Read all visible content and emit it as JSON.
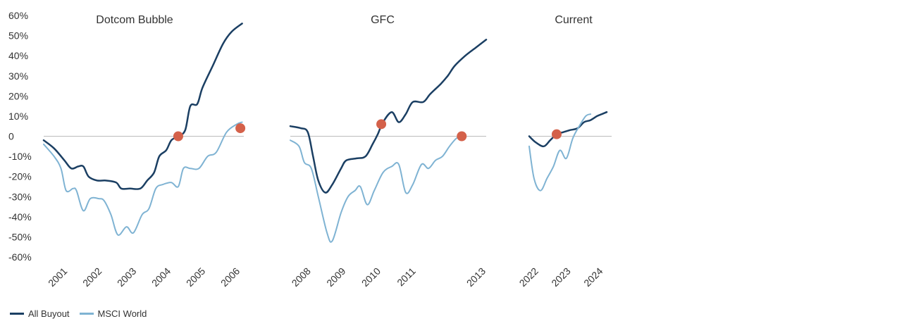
{
  "chart_data": {
    "type": "line",
    "y_tick_labels": [
      "60%",
      "50%",
      "40%",
      "30%",
      "20%",
      "10%",
      "0",
      "-10%",
      "-20%",
      "-30%",
      "-40%",
      "-50%",
      "-60%"
    ],
    "ylim": [
      -60,
      60
    ],
    "colors": {
      "buyout": "#1b3f63",
      "msci": "#7fb3d3",
      "marker": "#d4614a",
      "zero_line": "#bbbbbb"
    },
    "legend": [
      {
        "key": "buyout",
        "label": "All Buyout"
      },
      {
        "key": "msci",
        "label": "MSCI World"
      }
    ],
    "panels": [
      {
        "title": "Dotcom Bubble",
        "xlim": [
          2000.3,
          2006.1
        ],
        "x_ticks": [
          "2001",
          "2002",
          "2003",
          "2004",
          "2005",
          "2006"
        ],
        "series": [
          {
            "key": "buyout",
            "points": [
              [
                2000.3,
                -2
              ],
              [
                2000.6,
                -6
              ],
              [
                2000.9,
                -12
              ],
              [
                2001.1,
                -16
              ],
              [
                2001.3,
                -15
              ],
              [
                2001.45,
                -15
              ],
              [
                2001.6,
                -20
              ],
              [
                2001.85,
                -22
              ],
              [
                2002.1,
                -22
              ],
              [
                2002.4,
                -23
              ],
              [
                2002.55,
                -26
              ],
              [
                2002.8,
                -26
              ],
              [
                2003.1,
                -26
              ],
              [
                2003.3,
                -22
              ],
              [
                2003.5,
                -18
              ],
              [
                2003.65,
                -10
              ],
              [
                2003.85,
                -7
              ],
              [
                2004.0,
                -2
              ],
              [
                2004.2,
                0
              ],
              [
                2004.4,
                3
              ],
              [
                2004.55,
                15
              ],
              [
                2004.75,
                16
              ],
              [
                2004.9,
                24
              ],
              [
                2005.2,
                35
              ],
              [
                2005.5,
                46
              ],
              [
                2005.75,
                52
              ],
              [
                2006.05,
                56
              ]
            ]
          },
          {
            "key": "msci",
            "points": [
              [
                2000.3,
                -4
              ],
              [
                2000.6,
                -10
              ],
              [
                2000.8,
                -16
              ],
              [
                2000.95,
                -27
              ],
              [
                2001.15,
                -26
              ],
              [
                2001.25,
                -27
              ],
              [
                2001.45,
                -37
              ],
              [
                2001.65,
                -31
              ],
              [
                2001.9,
                -31
              ],
              [
                2002.05,
                -32
              ],
              [
                2002.25,
                -39
              ],
              [
                2002.45,
                -49
              ],
              [
                2002.7,
                -45
              ],
              [
                2002.9,
                -48
              ],
              [
                2003.15,
                -39
              ],
              [
                2003.35,
                -36
              ],
              [
                2003.55,
                -26
              ],
              [
                2003.75,
                -24
              ],
              [
                2004.0,
                -23
              ],
              [
                2004.2,
                -25
              ],
              [
                2004.35,
                -16
              ],
              [
                2004.55,
                -16
              ],
              [
                2004.8,
                -16
              ],
              [
                2005.05,
                -10
              ],
              [
                2005.3,
                -8
              ],
              [
                2005.6,
                2
              ],
              [
                2005.9,
                6
              ],
              [
                2006.05,
                7
              ]
            ]
          }
        ],
        "markers": [
          [
            2004.2,
            0
          ],
          [
            2006.0,
            4
          ]
        ]
      },
      {
        "title": "GFC",
        "xlim": [
          2007.4,
          2013.0
        ],
        "x_ticks": [
          "2008",
          "2009",
          "2010",
          "2011",
          "2013"
        ],
        "series": [
          {
            "key": "buyout",
            "points": [
              [
                2007.4,
                5
              ],
              [
                2007.7,
                4
              ],
              [
                2007.9,
                2
              ],
              [
                2008.05,
                -10
              ],
              [
                2008.2,
                -22
              ],
              [
                2008.4,
                -28
              ],
              [
                2008.6,
                -24
              ],
              [
                2008.85,
                -16
              ],
              [
                2009.0,
                -12
              ],
              [
                2009.3,
                -11
              ],
              [
                2009.55,
                -10
              ],
              [
                2009.75,
                -4
              ],
              [
                2009.9,
                1
              ],
              [
                2010.05,
                7
              ],
              [
                2010.3,
                12
              ],
              [
                2010.5,
                7
              ],
              [
                2010.7,
                11
              ],
              [
                2010.9,
                17
              ],
              [
                2011.2,
                17
              ],
              [
                2011.4,
                21
              ],
              [
                2011.7,
                26
              ],
              [
                2011.9,
                30
              ],
              [
                2012.1,
                35
              ],
              [
                2012.4,
                40
              ],
              [
                2012.7,
                44
              ],
              [
                2013.0,
                48
              ]
            ]
          },
          {
            "key": "msci",
            "points": [
              [
                2007.4,
                -2
              ],
              [
                2007.65,
                -5
              ],
              [
                2007.8,
                -13
              ],
              [
                2008.0,
                -16
              ],
              [
                2008.2,
                -30
              ],
              [
                2008.45,
                -48
              ],
              [
                2008.6,
                -52
              ],
              [
                2008.85,
                -38
              ],
              [
                2009.05,
                -30
              ],
              [
                2009.25,
                -27
              ],
              [
                2009.4,
                -25
              ],
              [
                2009.6,
                -34
              ],
              [
                2009.8,
                -27
              ],
              [
                2010.05,
                -18
              ],
              [
                2010.3,
                -15
              ],
              [
                2010.5,
                -14
              ],
              [
                2010.7,
                -28
              ],
              [
                2010.9,
                -24
              ],
              [
                2011.15,
                -14
              ],
              [
                2011.35,
                -16
              ],
              [
                2011.55,
                -12
              ],
              [
                2011.75,
                -10
              ],
              [
                2011.95,
                -5
              ],
              [
                2012.15,
                -1
              ],
              [
                2012.3,
                0
              ]
            ]
          }
        ],
        "markers": [
          [
            2010.0,
            6
          ],
          [
            2012.3,
            0
          ]
        ]
      },
      {
        "title": "Current",
        "xlim": [
          2021.7,
          2024.1
        ],
        "x_ticks": [
          "2022",
          "2023",
          "2024"
        ],
        "series": [
          {
            "key": "buyout",
            "points": [
              [
                2021.7,
                0
              ],
              [
                2021.9,
                -3
              ],
              [
                2022.15,
                -5
              ],
              [
                2022.35,
                -2
              ],
              [
                2022.55,
                1
              ],
              [
                2022.75,
                2
              ],
              [
                2022.95,
                3
              ],
              [
                2023.2,
                4
              ],
              [
                2023.4,
                7
              ],
              [
                2023.6,
                8
              ],
              [
                2023.8,
                10
              ],
              [
                2023.95,
                11
              ],
              [
                2024.1,
                12
              ]
            ]
          },
          {
            "key": "msci",
            "points": [
              [
                2021.7,
                -5
              ],
              [
                2021.85,
                -21
              ],
              [
                2022.05,
                -27
              ],
              [
                2022.25,
                -21
              ],
              [
                2022.45,
                -15
              ],
              [
                2022.65,
                -7
              ],
              [
                2022.85,
                -11
              ],
              [
                2023.05,
                -1
              ],
              [
                2023.25,
                5
              ],
              [
                2023.45,
                10
              ],
              [
                2023.6,
                11
              ]
            ]
          }
        ],
        "markers": [
          [
            2022.55,
            1
          ]
        ]
      }
    ]
  }
}
